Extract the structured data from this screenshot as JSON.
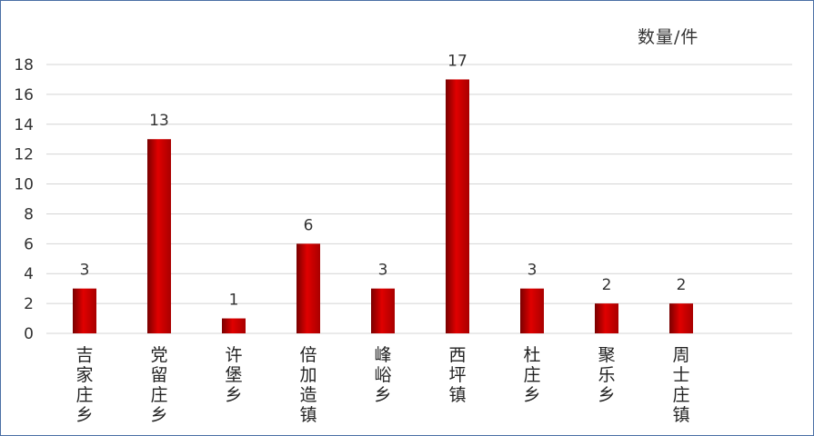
{
  "chart_data": {
    "type": "bar",
    "unit_label": "数量/件",
    "categories": [
      "吉家庄乡",
      "党留庄乡",
      "许堡乡",
      "倍加造镇",
      "峰峪乡",
      "西坪镇",
      "杜庄乡",
      "聚乐乡",
      "周士庄镇"
    ],
    "values": [
      3,
      13,
      1,
      6,
      3,
      17,
      3,
      2,
      2
    ],
    "ylim": [
      0,
      18
    ],
    "yticks": [
      0,
      2,
      4,
      6,
      8,
      10,
      12,
      14,
      16,
      18
    ],
    "grid": true,
    "legend": "none",
    "data_labels": true,
    "colors": {
      "bar_dark": "#7a0000",
      "bar_mid": "#e00000",
      "bar_light": "#a80000",
      "grid": "#d4d4d4",
      "axis_text": "#333333",
      "frame": "#4a6fa5"
    }
  }
}
